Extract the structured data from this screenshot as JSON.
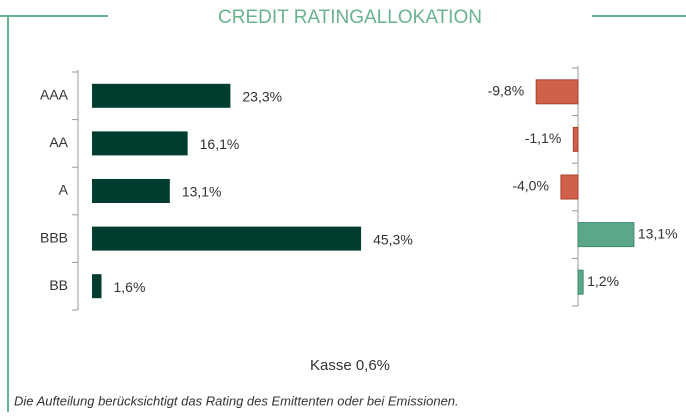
{
  "title": "CREDIT RATINGALLOKATION",
  "chart_data": [
    {
      "type": "hbar",
      "categories": [
        "AAA",
        "AA",
        "A",
        "BBB",
        "BB"
      ],
      "values": [
        23.3,
        16.1,
        13.1,
        45.3,
        1.6
      ],
      "value_labels": [
        "23,3%",
        "16,1%",
        "13,1%",
        "45,3%",
        "1,6%"
      ],
      "color": "#003d2e",
      "xlim": [
        0,
        50
      ]
    },
    {
      "type": "diverging",
      "values": [
        -9.8,
        -1.1,
        -4.0,
        13.1,
        1.2
      ],
      "value_labels": [
        "-9,8%",
        "-1,1%",
        "-4,0%",
        "13,1%",
        "1,2%"
      ],
      "color_negative": "#d0604a",
      "color_positive": "#5aa888",
      "xlim": [
        -15,
        15
      ]
    }
  ],
  "cash_note": "Kasse 0,6%",
  "footnote": "Die Aufteilung berücksichtigt das Rating des Emittenten oder bei Emissionen."
}
